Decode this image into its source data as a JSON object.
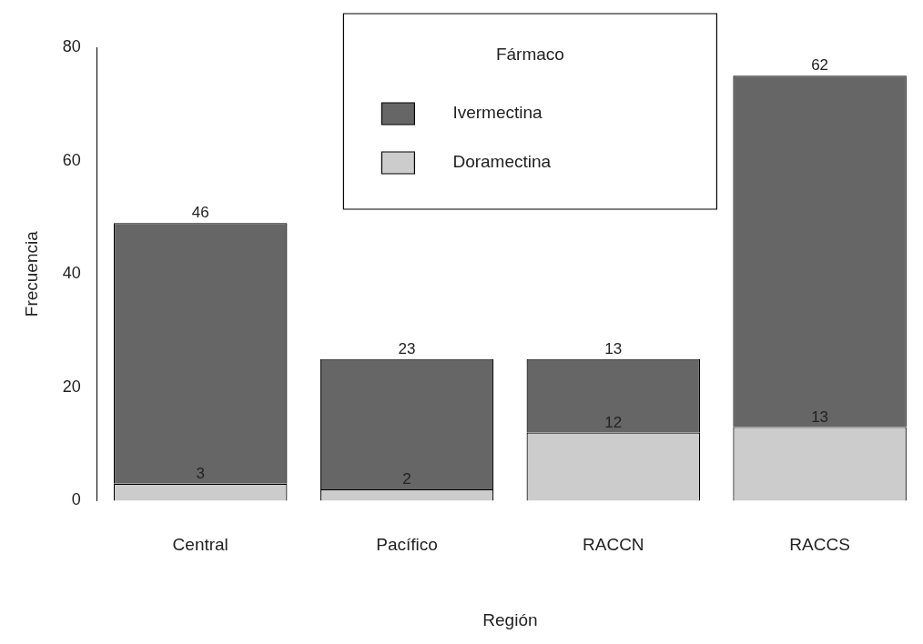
{
  "chart_data": {
    "type": "bar",
    "stacked": true,
    "xlabel": "Región",
    "ylabel": "Frecuencia",
    "legend_title": "Fármaco",
    "legend": "top",
    "grid": false,
    "data_labels": true,
    "categories": [
      "Central",
      "Pacífico",
      "RACCN",
      "RACCS"
    ],
    "ylim": [
      0,
      80
    ],
    "yticks": [
      0,
      20,
      40,
      60,
      80
    ],
    "series": [
      {
        "name": "Doramectina",
        "color": "#cccccc",
        "values": [
          3,
          2,
          12,
          13
        ]
      },
      {
        "name": "Ivermectina",
        "color": "#666666",
        "values": [
          46,
          23,
          13,
          62
        ]
      }
    ]
  }
}
